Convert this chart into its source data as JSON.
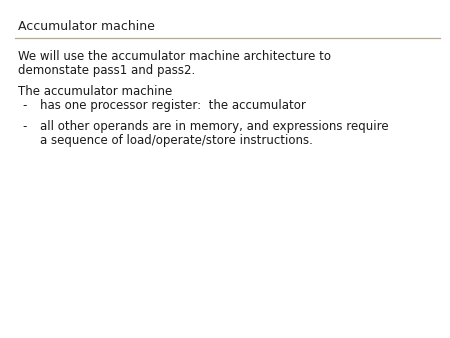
{
  "title": "Accumulator machine",
  "title_fontsize": 9,
  "title_color": "#222222",
  "background_color": "#ffffff",
  "line_color": "#b0a898",
  "body_fontsize": 8.5,
  "body_color": "#1a1a1a",
  "font_family": "DejaVu Sans",
  "paragraph1_line1": "We will use the accumulator machine architecture to",
  "paragraph1_line2": "demonstate pass1 and pass2.",
  "paragraph2": "The accumulator machine",
  "bullet1_dash": "-",
  "bullet1_text": "has one processor register:  the accumulator",
  "bullet2_dash": "-",
  "bullet2_line1": "all other operands are in memory, and expressions require",
  "bullet2_line2": "a sequence of load/operate/store instructions."
}
